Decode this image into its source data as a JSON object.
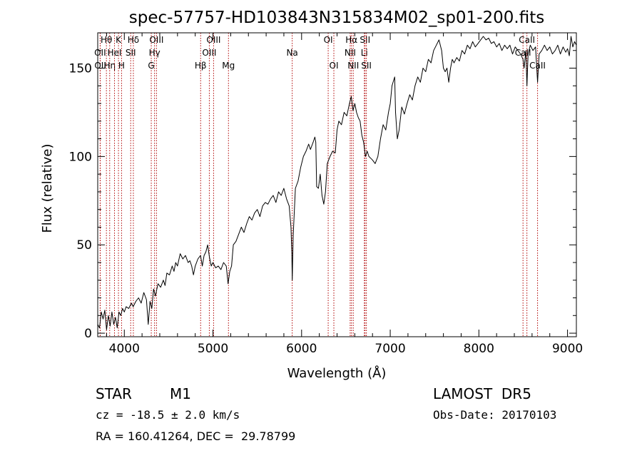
{
  "chart_data": {
    "type": "line",
    "title": "spec-57757-HD103843N315834M02_sp01-200.fits",
    "xlabel": "Wavelength (Å)",
    "ylabel": "Flux (relative)",
    "xlim": [
      3700,
      9100
    ],
    "ylim": [
      -2,
      170
    ],
    "x_ticks": [
      4000,
      5000,
      6000,
      7000,
      8000,
      9000
    ],
    "y_ticks": [
      0,
      50,
      100,
      150
    ],
    "grid": false,
    "legend": "none",
    "series": [
      {
        "color": "#000000",
        "points": [
          [
            3700,
            5
          ],
          [
            3720,
            3
          ],
          [
            3740,
            12
          ],
          [
            3760,
            8
          ],
          [
            3780,
            13
          ],
          [
            3800,
            2
          ],
          [
            3820,
            10
          ],
          [
            3840,
            4
          ],
          [
            3860,
            12
          ],
          [
            3880,
            5
          ],
          [
            3900,
            9
          ],
          [
            3920,
            3
          ],
          [
            3940,
            12
          ],
          [
            3960,
            10
          ],
          [
            3980,
            14
          ],
          [
            4000,
            12
          ],
          [
            4020,
            15
          ],
          [
            4050,
            14
          ],
          [
            4080,
            17
          ],
          [
            4100,
            15
          ],
          [
            4130,
            18
          ],
          [
            4160,
            20
          ],
          [
            4190,
            17
          ],
          [
            4220,
            23
          ],
          [
            4250,
            19
          ],
          [
            4270,
            5
          ],
          [
            4290,
            18
          ],
          [
            4310,
            14
          ],
          [
            4330,
            25
          ],
          [
            4350,
            21
          ],
          [
            4380,
            28
          ],
          [
            4410,
            26
          ],
          [
            4440,
            30
          ],
          [
            4460,
            27
          ],
          [
            4480,
            34
          ],
          [
            4510,
            33
          ],
          [
            4540,
            38
          ],
          [
            4560,
            35
          ],
          [
            4580,
            40
          ],
          [
            4600,
            38
          ],
          [
            4630,
            45
          ],
          [
            4660,
            42
          ],
          [
            4690,
            44
          ],
          [
            4720,
            40
          ],
          [
            4740,
            41
          ],
          [
            4760,
            38
          ],
          [
            4780,
            33
          ],
          [
            4800,
            38
          ],
          [
            4830,
            42
          ],
          [
            4860,
            44
          ],
          [
            4880,
            38
          ],
          [
            4900,
            44
          ],
          [
            4920,
            46
          ],
          [
            4940,
            50
          ],
          [
            4960,
            43
          ],
          [
            4980,
            38
          ],
          [
            5000,
            40
          ],
          [
            5030,
            37
          ],
          [
            5060,
            38
          ],
          [
            5090,
            36
          ],
          [
            5120,
            40
          ],
          [
            5150,
            38
          ],
          [
            5170,
            28
          ],
          [
            5190,
            35
          ],
          [
            5210,
            38
          ],
          [
            5230,
            50
          ],
          [
            5260,
            52
          ],
          [
            5290,
            56
          ],
          [
            5320,
            60
          ],
          [
            5350,
            57
          ],
          [
            5380,
            62
          ],
          [
            5410,
            66
          ],
          [
            5440,
            64
          ],
          [
            5470,
            68
          ],
          [
            5500,
            70
          ],
          [
            5530,
            66
          ],
          [
            5560,
            72
          ],
          [
            5590,
            74
          ],
          [
            5620,
            73
          ],
          [
            5650,
            76
          ],
          [
            5680,
            78
          ],
          [
            5710,
            74
          ],
          [
            5740,
            80
          ],
          [
            5770,
            78
          ],
          [
            5800,
            82
          ],
          [
            5830,
            76
          ],
          [
            5860,
            72
          ],
          [
            5880,
            60
          ],
          [
            5890,
            45
          ],
          [
            5895,
            30
          ],
          [
            5905,
            55
          ],
          [
            5930,
            82
          ],
          [
            5960,
            86
          ],
          [
            5990,
            94
          ],
          [
            6020,
            100
          ],
          [
            6050,
            103
          ],
          [
            6080,
            107
          ],
          [
            6100,
            104
          ],
          [
            6130,
            108
          ],
          [
            6150,
            111
          ],
          [
            6160,
            108
          ],
          [
            6170,
            83
          ],
          [
            6190,
            82
          ],
          [
            6210,
            90
          ],
          [
            6230,
            78
          ],
          [
            6250,
            73
          ],
          [
            6270,
            80
          ],
          [
            6290,
            96
          ],
          [
            6320,
            100
          ],
          [
            6350,
            103
          ],
          [
            6380,
            102
          ],
          [
            6400,
            115
          ],
          [
            6420,
            120
          ],
          [
            6450,
            118
          ],
          [
            6480,
            125
          ],
          [
            6510,
            123
          ],
          [
            6540,
            130
          ],
          [
            6560,
            134
          ],
          [
            6580,
            126
          ],
          [
            6600,
            130
          ],
          [
            6620,
            125
          ],
          [
            6640,
            122
          ],
          [
            6660,
            120
          ],
          [
            6680,
            112
          ],
          [
            6700,
            108
          ],
          [
            6720,
            100
          ],
          [
            6740,
            103
          ],
          [
            6760,
            100
          ],
          [
            6780,
            99
          ],
          [
            6800,
            98
          ],
          [
            6830,
            96
          ],
          [
            6860,
            100
          ],
          [
            6890,
            110
          ],
          [
            6920,
            118
          ],
          [
            6950,
            115
          ],
          [
            6980,
            125
          ],
          [
            7000,
            130
          ],
          [
            7020,
            140
          ],
          [
            7050,
            145
          ],
          [
            7060,
            125
          ],
          [
            7080,
            110
          ],
          [
            7100,
            115
          ],
          [
            7130,
            128
          ],
          [
            7160,
            124
          ],
          [
            7190,
            130
          ],
          [
            7220,
            135
          ],
          [
            7250,
            132
          ],
          [
            7280,
            140
          ],
          [
            7310,
            145
          ],
          [
            7340,
            142
          ],
          [
            7370,
            150
          ],
          [
            7400,
            148
          ],
          [
            7430,
            155
          ],
          [
            7460,
            153
          ],
          [
            7490,
            160
          ],
          [
            7520,
            163
          ],
          [
            7550,
            166
          ],
          [
            7580,
            160
          ],
          [
            7600,
            150
          ],
          [
            7620,
            148
          ],
          [
            7640,
            150
          ],
          [
            7660,
            142
          ],
          [
            7680,
            150
          ],
          [
            7700,
            155
          ],
          [
            7720,
            153
          ],
          [
            7750,
            156
          ],
          [
            7780,
            154
          ],
          [
            7810,
            160
          ],
          [
            7840,
            158
          ],
          [
            7870,
            163
          ],
          [
            7900,
            161
          ],
          [
            7930,
            165
          ],
          [
            7960,
            162
          ],
          [
            7990,
            164
          ],
          [
            8020,
            166
          ],
          [
            8050,
            168
          ],
          [
            8080,
            166
          ],
          [
            8110,
            167
          ],
          [
            8140,
            164
          ],
          [
            8170,
            165
          ],
          [
            8200,
            162
          ],
          [
            8230,
            164
          ],
          [
            8260,
            160
          ],
          [
            8290,
            163
          ],
          [
            8320,
            161
          ],
          [
            8350,
            163
          ],
          [
            8380,
            158
          ],
          [
            8410,
            162
          ],
          [
            8440,
            160
          ],
          [
            8470,
            158
          ],
          [
            8498,
            155
          ],
          [
            8510,
            150
          ],
          [
            8530,
            160
          ],
          [
            8542,
            140
          ],
          [
            8555,
            158
          ],
          [
            8580,
            163
          ],
          [
            8610,
            160
          ],
          [
            8640,
            162
          ],
          [
            8662,
            142
          ],
          [
            8680,
            158
          ],
          [
            8710,
            160
          ],
          [
            8740,
            163
          ],
          [
            8770,
            160
          ],
          [
            8800,
            162
          ],
          [
            8830,
            158
          ],
          [
            8860,
            160
          ],
          [
            8890,
            163
          ],
          [
            8920,
            158
          ],
          [
            8950,
            162
          ],
          [
            8980,
            159
          ],
          [
            9000,
            161
          ],
          [
            9020,
            157
          ],
          [
            9040,
            168
          ],
          [
            9060,
            162
          ],
          [
            9080,
            165
          ],
          [
            9100,
            163
          ]
        ]
      }
    ],
    "lines": [
      {
        "name": "Hθ",
        "x": 3798,
        "row": 0
      },
      {
        "name": "OII",
        "x": 3727,
        "row": 1
      },
      {
        "name": "OII",
        "x": 3729,
        "row": 2
      },
      {
        "name": "Hη",
        "x": 3835,
        "row": 2
      },
      {
        "name": "HeI",
        "x": 3889,
        "row": 1
      },
      {
        "name": "K",
        "x": 3934,
        "row": 0
      },
      {
        "name": "H",
        "x": 3969,
        "row": 2
      },
      {
        "name": "SII",
        "x": 4072,
        "row": 1
      },
      {
        "name": "Hδ",
        "x": 4102,
        "row": 0
      },
      {
        "name": "G",
        "x": 4304,
        "row": 2
      },
      {
        "name": "Hγ",
        "x": 4341,
        "row": 1
      },
      {
        "name": "OIII",
        "x": 4363,
        "row": 0
      },
      {
        "name": "Hβ",
        "x": 4861,
        "row": 2
      },
      {
        "name": "OIII",
        "x": 4959,
        "row": 1
      },
      {
        "name": "OIII",
        "x": 5007,
        "row": 0
      },
      {
        "name": "Mg",
        "x": 5175,
        "row": 2
      },
      {
        "name": "Na",
        "x": 5894,
        "row": 1
      },
      {
        "name": "OI",
        "x": 6300,
        "row": 0
      },
      {
        "name": "OI",
        "x": 6364,
        "row": 2
      },
      {
        "name": "NII",
        "x": 6548,
        "row": 1
      },
      {
        "name": "Hα",
        "x": 6563,
        "row": 0
      },
      {
        "name": "NII",
        "x": 6583,
        "row": 2
      },
      {
        "name": "Li",
        "x": 6708,
        "row": 1
      },
      {
        "name": "SII",
        "x": 6716,
        "row": 0
      },
      {
        "name": "SII",
        "x": 6731,
        "row": 2
      },
      {
        "name": "CaII",
        "x": 8498,
        "row": 1
      },
      {
        "name": "CaII",
        "x": 8542,
        "row": 0
      },
      {
        "name": "CaII",
        "x": 8662,
        "row": 2
      }
    ]
  },
  "info": {
    "class": "STAR",
    "subclass": "M1",
    "survey": "LAMOST  DR5",
    "cz": "cz = -18.5 ± 2.0 km/s",
    "obs_date": "Obs-Date: 20170103",
    "coords": "RA = 160.41264, DEC =  29.78799"
  }
}
